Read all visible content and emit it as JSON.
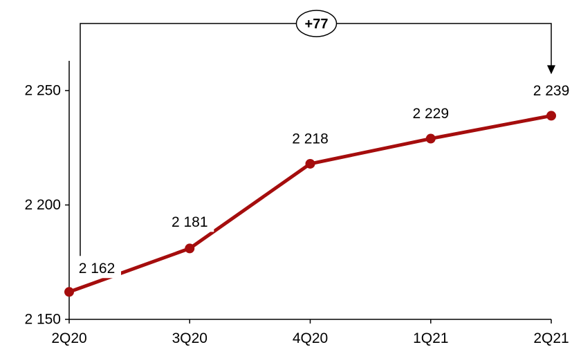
{
  "chart_data": {
    "type": "line",
    "categories": [
      "2Q20",
      "3Q20",
      "4Q20",
      "1Q21",
      "2Q21"
    ],
    "series": [
      {
        "values": [
          2162,
          2181,
          2218,
          2229,
          2239
        ]
      }
    ],
    "data_labels": [
      "2 162",
      "2 181",
      "2 218",
      "2 229",
      "2 239"
    ],
    "y_ticks": [
      {
        "value": 2150,
        "label": "2 150"
      },
      {
        "value": 2200,
        "label": "2 200"
      },
      {
        "value": 2250,
        "label": "2 250"
      }
    ],
    "ylim": [
      2150,
      2263
    ],
    "title": "",
    "xlabel": "",
    "ylabel": "",
    "grid": false,
    "legend": "none",
    "annotation": {
      "label": "+77",
      "from_category": "2Q20",
      "to_category": "2Q21"
    },
    "colors": {
      "series": "#a50d0d",
      "axis": "#000000",
      "annotation": "#000000"
    }
  }
}
